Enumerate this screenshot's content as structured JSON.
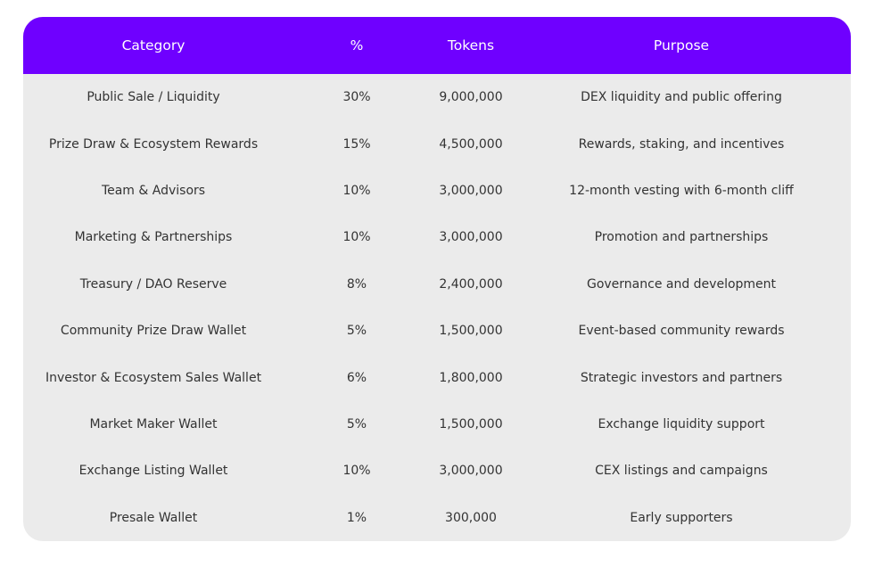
{
  "table": {
    "header": [
      "Category",
      "%",
      "Tokens",
      "Purpose"
    ],
    "rows": [
      [
        "Public Sale / Liquidity",
        "30%",
        "9,000,000",
        "DEX liquidity and public offering"
      ],
      [
        "Prize Draw & Ecosystem Rewards",
        "15%",
        "4,500,000",
        "Rewards, staking, and incentives"
      ],
      [
        "Team & Advisors",
        "10%",
        "3,000,000",
        "12-month vesting with 6-month cliff"
      ],
      [
        "Marketing & Partnerships",
        "10%",
        "3,000,000",
        "Promotion and partnerships"
      ],
      [
        "Treasury / DAO Reserve",
        "8%",
        "2,400,000",
        "Governance and development"
      ],
      [
        "Community Prize Draw Wallet",
        "5%",
        "1,500,000",
        "Event-based community rewards"
      ],
      [
        "Investor & Ecosystem Sales Wallet",
        "6%",
        "1,800,000",
        "Strategic investors and partners"
      ],
      [
        "Market Maker Wallet",
        "5%",
        "1,500,000",
        "Exchange liquidity support"
      ],
      [
        "Exchange Listing Wallet",
        "10%",
        "3,000,000",
        "CEX listings and campaigns"
      ],
      [
        "Presale Wallet",
        "1%",
        "300,000",
        "Early supporters"
      ]
    ]
  }
}
